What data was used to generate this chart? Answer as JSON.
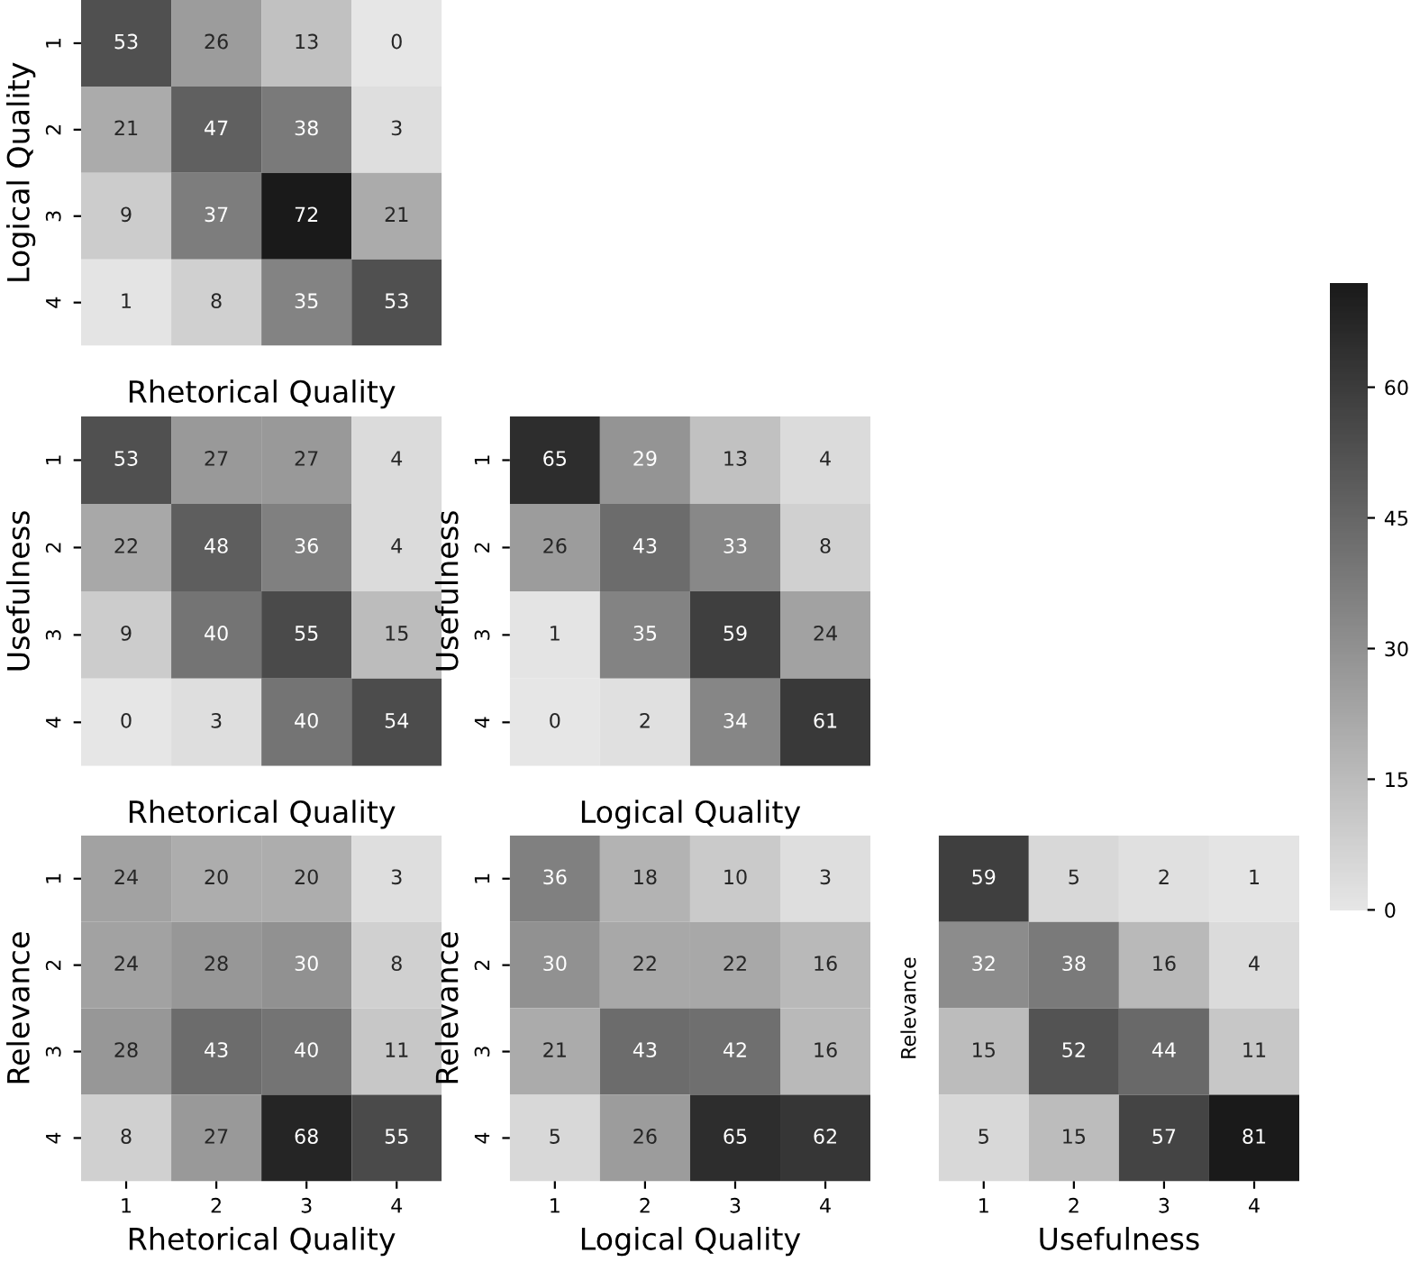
{
  "chart_data": [
    {
      "type": "heatmap",
      "xlabel": "Rhetorical Quality",
      "ylabel": "Logical Quality",
      "categories": [
        "1",
        "2",
        "3",
        "4"
      ],
      "y_categories": [
        "1",
        "2",
        "3",
        "4"
      ],
      "tick_labels": "y",
      "data_labels": true,
      "clim": [
        0,
        72
      ],
      "cticks": [
        0,
        15,
        30,
        45,
        60
      ],
      "cells": [
        [
          53,
          26,
          13,
          0
        ],
        [
          21,
          47,
          38,
          3
        ],
        [
          9,
          37,
          72,
          21
        ],
        [
          1,
          8,
          35,
          53
        ]
      ]
    },
    {
      "type": "heatmap",
      "xlabel": "Rhetorical Quality",
      "ylabel": "Usefulness",
      "categories": [
        "1",
        "2",
        "3",
        "4"
      ],
      "y_categories": [
        "1",
        "2",
        "3",
        "4"
      ],
      "tick_labels": "y",
      "data_labels": true,
      "cells": [
        [
          53,
          27,
          27,
          4
        ],
        [
          22,
          48,
          36,
          4
        ],
        [
          9,
          40,
          55,
          15
        ],
        [
          0,
          3,
          40,
          54
        ]
      ]
    },
    {
      "type": "heatmap",
      "xlabel": "Logical Quality",
      "ylabel": "Usefulness",
      "categories": [
        "1",
        "2",
        "3",
        "4"
      ],
      "y_categories": [
        "1",
        "2",
        "3",
        "4"
      ],
      "tick_labels": "y",
      "data_labels": true,
      "cells": [
        [
          65,
          29,
          13,
          4
        ],
        [
          26,
          43,
          33,
          8
        ],
        [
          1,
          35,
          59,
          24
        ],
        [
          0,
          2,
          34,
          61
        ]
      ]
    },
    {
      "type": "heatmap",
      "xlabel": "Rhetorical Quality",
      "ylabel": "Relevance",
      "categories": [
        "1",
        "2",
        "3",
        "4"
      ],
      "y_categories": [
        "1",
        "2",
        "3",
        "4"
      ],
      "data_labels": true,
      "cells": [
        [
          24,
          20,
          20,
          3
        ],
        [
          24,
          28,
          30,
          8
        ],
        [
          28,
          43,
          40,
          11
        ],
        [
          8,
          27,
          68,
          55
        ]
      ]
    },
    {
      "type": "heatmap",
      "xlabel": "Logical Quality",
      "ylabel": "Relevance",
      "categories": [
        "1",
        "2",
        "3",
        "4"
      ],
      "y_categories": [
        "1",
        "2",
        "3",
        "4"
      ],
      "data_labels": true,
      "cells": [
        [
          36,
          18,
          10,
          3
        ],
        [
          30,
          22,
          22,
          16
        ],
        [
          21,
          43,
          42,
          16
        ],
        [
          5,
          26,
          65,
          62
        ]
      ]
    },
    {
      "type": "heatmap",
      "xlabel": "Usefulness",
      "ylabel": "Relevance",
      "categories": [
        "1",
        "2",
        "3",
        "4"
      ],
      "y_categories": [
        "1",
        "2",
        "3",
        "4"
      ],
      "tick_labels": "x",
      "data_labels": true,
      "cells": [
        [
          59,
          5,
          2,
          1
        ],
        [
          32,
          38,
          16,
          4
        ],
        [
          15,
          52,
          44,
          11
        ],
        [
          5,
          15,
          57,
          81
        ]
      ]
    }
  ]
}
